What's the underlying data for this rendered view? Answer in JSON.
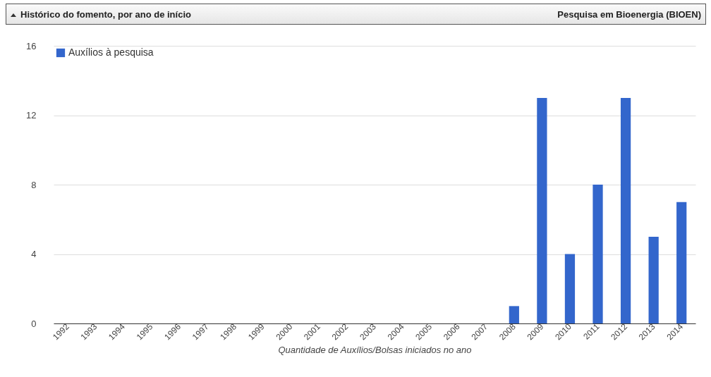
{
  "chart_data": {
    "type": "bar",
    "title": "Histórico do fomento, por ano de início",
    "subtitle": "Pesquisa em Bioenergia (BIOEN)",
    "xlabel": "Quantidade de Auxílios/Bolsas iniciados no ano",
    "categories": [
      "1992",
      "1993",
      "1994",
      "1995",
      "1996",
      "1997",
      "1998",
      "1999",
      "2000",
      "2001",
      "2002",
      "2003",
      "2004",
      "2005",
      "2006",
      "2007",
      "2008",
      "2009",
      "2010",
      "2011",
      "2012",
      "2013",
      "2014"
    ],
    "series": [
      {
        "name": "Auxílios à pesquisa",
        "color": "#3366cc",
        "values": [
          0,
          0,
          0,
          0,
          0,
          0,
          0,
          0,
          0,
          0,
          0,
          0,
          0,
          0,
          0,
          0,
          1,
          13,
          4,
          8,
          13,
          5,
          7
        ]
      }
    ],
    "ylim": [
      0,
      16
    ],
    "yticks": [
      0,
      4,
      8,
      12,
      16
    ],
    "grid": "y",
    "legend": "top left"
  }
}
